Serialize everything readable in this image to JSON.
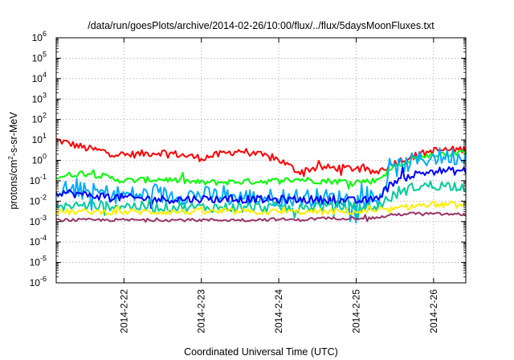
{
  "chart_data": {
    "type": "line",
    "title": "/data/run/goesPlots/archive/2014-02-26/10:00/flux/../flux/5daysMoonFluxes.txt",
    "xlabel": "Coordinated Universal Time (UTC)",
    "ylabel": {
      "prefix": "protons/cm",
      "sup": "2",
      "suffix": "-s-sr-MeV"
    },
    "yscale": "log",
    "ylim_exponents": [
      -6,
      6
    ],
    "yticks": [
      {
        "base": "10",
        "exp": "6"
      },
      {
        "base": "10",
        "exp": "5"
      },
      {
        "base": "10",
        "exp": "4"
      },
      {
        "base": "10",
        "exp": "3"
      },
      {
        "base": "10",
        "exp": "2"
      },
      {
        "base": "10",
        "exp": "1"
      },
      {
        "base": "10",
        "exp": "0"
      },
      {
        "base": "10",
        "exp": "-1"
      },
      {
        "base": "10",
        "exp": "-2"
      },
      {
        "base": "10",
        "exp": "-3"
      },
      {
        "base": "10",
        "exp": "-4"
      },
      {
        "base": "10",
        "exp": "-5"
      },
      {
        "base": "10",
        "exp": "-6"
      }
    ],
    "xlim_days": [
      "2014-02-21 03:00",
      "2014-02-26 10:00"
    ],
    "xticks": [
      "2014-2-22",
      "2014-2-23",
      "2014-2-24",
      "2014-2-25",
      "2014-2-26"
    ],
    "grid": true,
    "x_dates": [
      "2014-02-21 03:00",
      "2014-02-21 12:00",
      "2014-02-22 00:00",
      "2014-02-22 12:00",
      "2014-02-23 00:00",
      "2014-02-23 12:00",
      "2014-02-24 00:00",
      "2014-02-24 06:00",
      "2014-02-24 12:00",
      "2014-02-25 00:00",
      "2014-02-25 06:00",
      "2014-02-25 12:00",
      "2014-02-25 18:00",
      "2014-02-26 00:00",
      "2014-02-26 10:00"
    ],
    "series": [
      {
        "color": "#ff0000",
        "values": [
          10,
          4,
          1.8,
          2.5,
          1.3,
          3,
          1.1,
          0.28,
          0.45,
          0.4,
          0.25,
          0.8,
          1.6,
          3,
          3.5
        ],
        "noise": 0.18
      },
      {
        "color": "#00ff00",
        "values": [
          0.15,
          0.25,
          0.1,
          0.12,
          0.08,
          0.09,
          0.1,
          0.12,
          0.1,
          0.09,
          0.1,
          0.5,
          1.2,
          2,
          2.2
        ],
        "noise": 0.15
      },
      {
        "color": "#00aaff",
        "values": [
          0.04,
          0.03,
          0.02,
          0.02,
          0.02,
          0.015,
          0.015,
          0.015,
          0.015,
          0.012,
          0.01,
          0.4,
          0.9,
          1.5,
          1.6
        ],
        "noise": 0.45
      },
      {
        "color": "#0000ff",
        "values": [
          0.03,
          0.02,
          0.015,
          0.012,
          0.013,
          0.012,
          0.012,
          0.012,
          0.012,
          0.01,
          0.012,
          0.1,
          0.2,
          0.3,
          0.3
        ],
        "noise": 0.2
      },
      {
        "color": "#00cc99",
        "values": [
          0.006,
          0.006,
          0.006,
          0.005,
          0.005,
          0.005,
          0.005,
          0.004,
          0.006,
          0.005,
          0.005,
          0.02,
          0.05,
          0.06,
          0.055
        ],
        "noise": 0.25
      },
      {
        "color": "#ffee00",
        "values": [
          0.003,
          0.003,
          0.003,
          0.003,
          0.003,
          0.003,
          0.003,
          0.003,
          0.003,
          0.003,
          0.003,
          0.004,
          0.006,
          0.007,
          0.006
        ],
        "noise": 0.15
      },
      {
        "color": "#993366",
        "values": [
          0.0012,
          0.0012,
          0.0012,
          0.0012,
          0.0012,
          0.0012,
          0.0013,
          0.0012,
          0.0014,
          0.0015,
          0.0015,
          0.0022,
          0.0025,
          0.0024,
          0.0022
        ],
        "noise": 0.07
      }
    ]
  }
}
